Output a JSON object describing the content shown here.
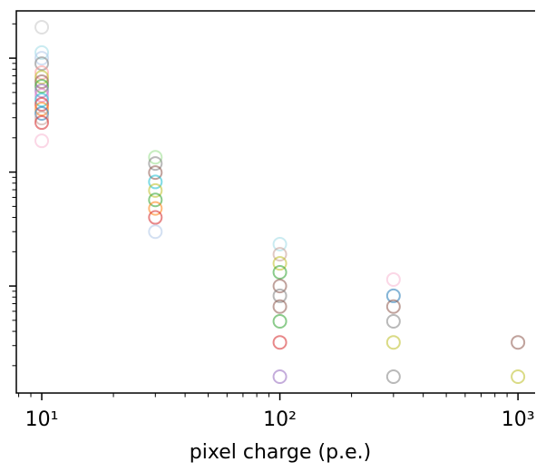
{
  "chart_data": {
    "type": "scatter",
    "x_label": "pixel charge (p.e.)",
    "xscale": "log",
    "yscale": "log",
    "xlim": [
      7.82,
      1180
    ],
    "ylim": [
      0.000115,
      0.26
    ],
    "xticks": [
      {
        "value": 10,
        "label": "10¹"
      },
      {
        "value": 100,
        "label": "10²"
      },
      {
        "value": 1000,
        "label": "10³"
      }
    ],
    "xminorticks": [
      8,
      9,
      20,
      30,
      40,
      50,
      60,
      70,
      80,
      90,
      200,
      300,
      400,
      500,
      600,
      700,
      800,
      900
    ],
    "yticks": [
      0.001,
      0.01,
      0.1
    ],
    "yminorticks": [
      0.0002,
      0.0003,
      0.0004,
      0.0005,
      0.0006,
      0.0007,
      0.0008,
      0.0009,
      0.002,
      0.003,
      0.004,
      0.005,
      0.006,
      0.007,
      0.008,
      0.009,
      0.02,
      0.03,
      0.04,
      0.05,
      0.06,
      0.07,
      0.08,
      0.09,
      0.2
    ],
    "x": [
      10,
      10,
      10,
      10,
      10,
      10,
      10,
      10,
      10,
      10,
      10,
      10,
      10,
      10,
      10,
      10,
      10,
      30,
      30,
      30,
      30,
      30,
      30,
      30,
      30,
      30,
      100,
      100,
      100,
      100,
      100,
      100,
      100,
      100,
      100,
      100,
      300,
      300,
      300,
      300,
      300,
      300,
      1000,
      1000
    ],
    "values": [
      0.187,
      0.112,
      0.1,
      0.0896,
      0.0746,
      0.068,
      0.0621,
      0.0567,
      0.0517,
      0.0471,
      0.043,
      0.0393,
      0.0358,
      0.0327,
      0.0298,
      0.0272,
      0.0188,
      0.0135,
      0.0119,
      0.0099,
      0.0082,
      0.0069,
      0.0057,
      0.0048,
      0.004,
      0.003,
      0.00233,
      0.0019,
      0.00158,
      0.00132,
      0.001,
      0.00082,
      0.00066,
      0.00049,
      0.00032,
      0.00016,
      0.00114,
      0.00082,
      0.00066,
      0.00049,
      0.00032,
      0.00016,
      0.00032,
      0.00016
    ],
    "colors": [
      "#c7c7c7",
      "#9edae5",
      "#aec7e8",
      "#7f7f7f",
      "#ff9896",
      "#bcbd22",
      "#8c564b",
      "#2ca02c",
      "#9467bd",
      "#e377c2",
      "#17becf",
      "#d62728",
      "#ff7f0e",
      "#1f77b4",
      "#c49c94",
      "#d62728",
      "#f7b6d2",
      "#98df8a",
      "#7f7f7f",
      "#8c564b",
      "#17becf",
      "#bcbd22",
      "#2ca02c",
      "#ff7f0e",
      "#d62728",
      "#aec7e8",
      "#9edae5",
      "#c49c94",
      "#bcbd22",
      "#2ca02c",
      "#8c564b",
      "#7f7f7f",
      "#8c564b",
      "#2ca02c",
      "#d62728",
      "#9467bd",
      "#f7b6d2",
      "#1f77b4",
      "#8c564b",
      "#7f7f7f",
      "#bcbd22",
      "#7f7f7f",
      "#8c564b",
      "#bcbd22"
    ]
  }
}
